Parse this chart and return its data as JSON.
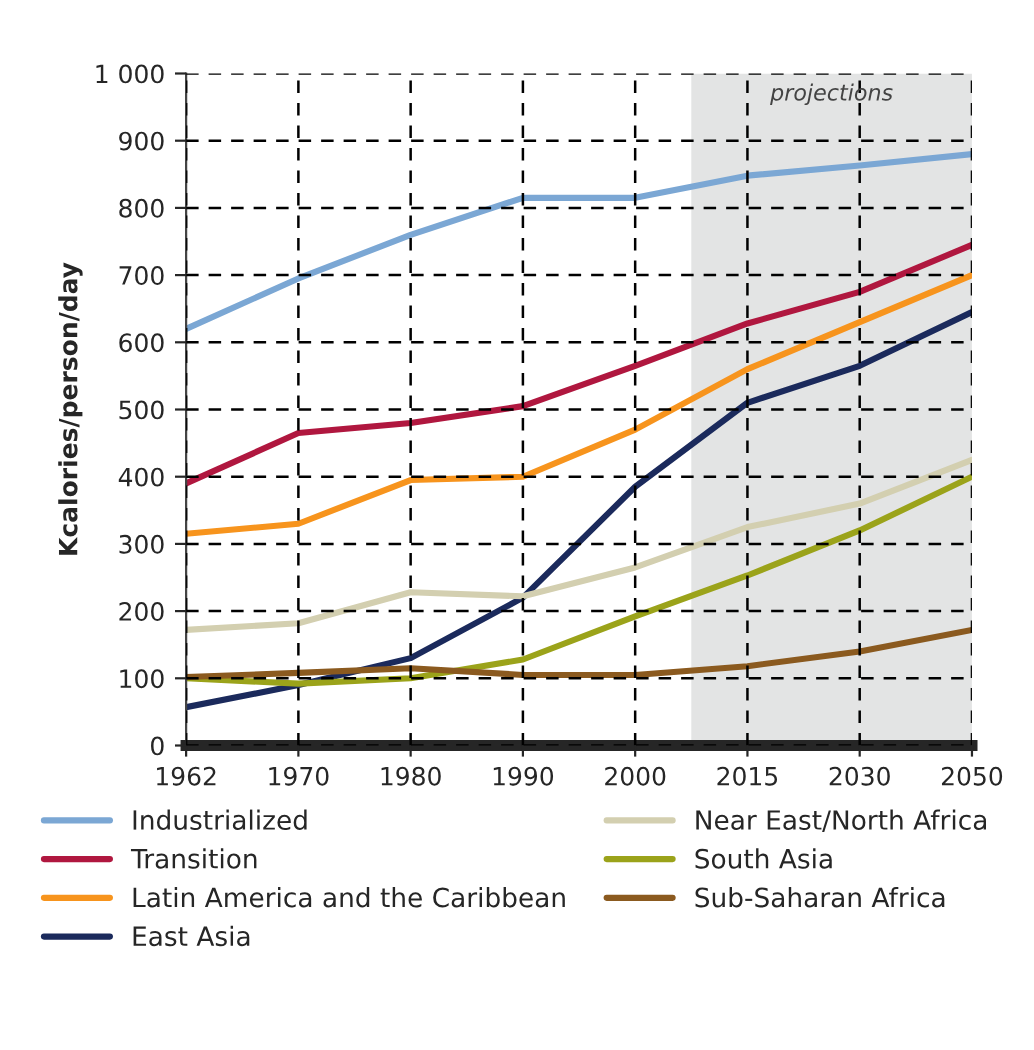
{
  "chart_data": {
    "type": "line",
    "ylabel": "Kcalories/person/day",
    "categories": [
      "1962",
      "1970",
      "1980",
      "1990",
      "2000",
      "2015",
      "2030",
      "2050"
    ],
    "ylim": [
      0,
      1000
    ],
    "yticks": [
      0,
      100,
      200,
      300,
      400,
      500,
      600,
      700,
      800,
      900,
      {
        "value": 1000,
        "label": "1 000"
      }
    ],
    "grid": true,
    "legend": "bottom",
    "line_style": "solid",
    "bands": [
      {
        "axis": "x",
        "from": "2015",
        "to": "2050",
        "label": "projections",
        "color": "#e3e4e4"
      }
    ],
    "series": [
      {
        "name": "Industrialized",
        "color": "#7ba7d4",
        "values": [
          620,
          695,
          760,
          815,
          815,
          848,
          863,
          880
        ]
      },
      {
        "name": "Transition",
        "color": "#b0173f",
        "values": [
          390,
          465,
          480,
          505,
          565,
          628,
          675,
          745
        ]
      },
      {
        "name": "Latin America and the Caribbean",
        "color": "#f7941d",
        "values": [
          315,
          330,
          395,
          400,
          470,
          560,
          630,
          700
        ]
      },
      {
        "name": "East Asia",
        "color": "#1b2a5c",
        "values": [
          57,
          90,
          130,
          220,
          385,
          510,
          565,
          645
        ]
      },
      {
        "name": "Near East/North Africa",
        "color": "#d3cfb0",
        "values": [
          172,
          182,
          228,
          222,
          265,
          325,
          360,
          425
        ]
      },
      {
        "name": "South Asia",
        "color": "#9ba31a",
        "values": [
          100,
          92,
          100,
          128,
          192,
          253,
          320,
          400
        ]
      },
      {
        "name": "Sub-Saharan Africa",
        "color": "#8b5a1f",
        "values": [
          102,
          108,
          115,
          105,
          105,
          118,
          140,
          172
        ]
      }
    ]
  }
}
